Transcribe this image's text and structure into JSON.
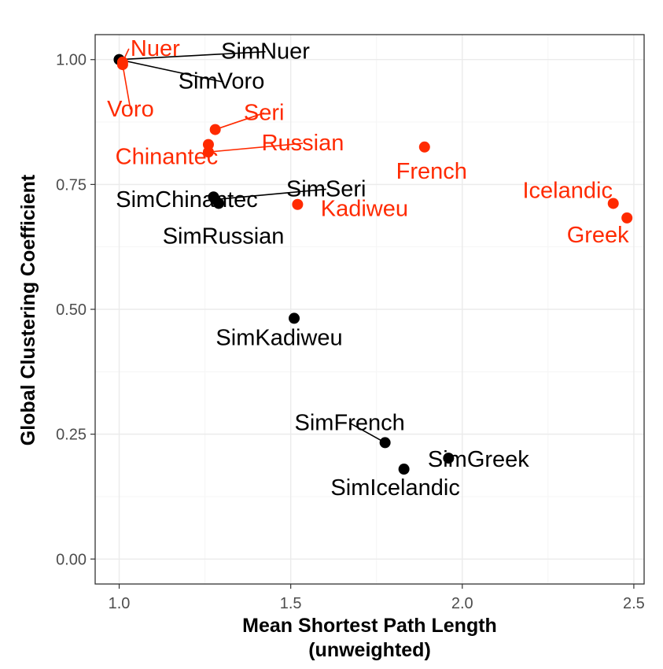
{
  "chart_data": {
    "type": "scatter",
    "xlabel_line1": "Mean Shortest Path Length",
    "xlabel_line2": "(unweighted)",
    "ylabel": "Global Clustering Coefficient",
    "xlim": [
      0.93,
      2.53
    ],
    "ylim": [
      -0.05,
      1.05
    ],
    "xticks": [
      1.0,
      1.5,
      2.0,
      2.5
    ],
    "xtick_labels": [
      "1.0",
      "1.5",
      "2.0",
      "2.5"
    ],
    "yticks": [
      0.0,
      0.25,
      0.5,
      0.75,
      1.0
    ],
    "ytick_labels": [
      "0.00",
      "0.25",
      "0.50",
      "0.75",
      "1.00"
    ],
    "grid": true,
    "colors": {
      "real": "#ff2a00",
      "simulated": "#000000",
      "grid_major": "#ebebeb",
      "grid_minor": "#f5f5f5",
      "panel_border": "#333333"
    },
    "series": [
      {
        "group": "real",
        "points": [
          {
            "label": "Nuer",
            "x": 1.01,
            "y": 0.995
          },
          {
            "label": "Voro",
            "x": 1.01,
            "y": 0.99
          },
          {
            "label": "Seri",
            "x": 1.28,
            "y": 0.86
          },
          {
            "label": "Chinantec",
            "x": 1.26,
            "y": 0.83
          },
          {
            "label": "Russian",
            "x": 1.26,
            "y": 0.815
          },
          {
            "label": "French",
            "x": 1.89,
            "y": 0.825
          },
          {
            "label": "Kadiweu",
            "x": 1.52,
            "y": 0.71
          },
          {
            "label": "Icelandic",
            "x": 2.44,
            "y": 0.712
          },
          {
            "label": "Greek",
            "x": 2.48,
            "y": 0.683
          }
        ]
      },
      {
        "group": "simulated",
        "points": [
          {
            "label": "SimNuer",
            "x": 1.0,
            "y": 1.0
          },
          {
            "label": "SimVoro",
            "x": 1.0,
            "y": 1.0
          },
          {
            "label": "SimChinantec",
            "x": 1.275,
            "y": 0.725
          },
          {
            "label": "SimSeri",
            "x": 1.28,
            "y": 0.72
          },
          {
            "label": "SimRussian",
            "x": 1.29,
            "y": 0.712
          },
          {
            "label": "SimKadiweu",
            "x": 1.51,
            "y": 0.482
          },
          {
            "label": "SimFrench",
            "x": 1.775,
            "y": 0.233
          },
          {
            "label": "SimGreek",
            "x": 1.96,
            "y": 0.202
          },
          {
            "label": "SimIcelandic",
            "x": 1.83,
            "y": 0.18
          }
        ]
      }
    ]
  }
}
